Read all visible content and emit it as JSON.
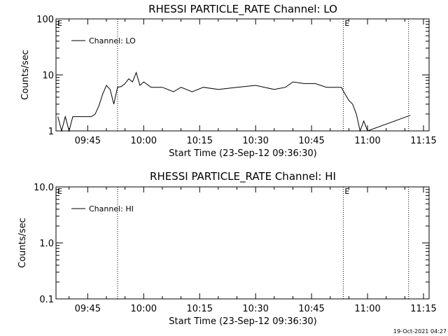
{
  "chart_data": [
    {
      "type": "line",
      "title": "RHESSI PARTICLE_RATE Channel: LO",
      "xlabel": "Start Time (23-Sep-12 09:36:30)",
      "ylabel": "Counts/sec",
      "yscale": "log",
      "ylim": [
        1,
        100
      ],
      "xlim": [
        "09:36:30",
        "11:16:30"
      ],
      "x_ticks": [
        "09:45",
        "10:00",
        "10:15",
        "10:30",
        "10:45",
        "11:00",
        "11:15"
      ],
      "y_ticks": [
        "1",
        "10",
        "100"
      ],
      "legend": {
        "entries": [
          "Channel: LO"
        ],
        "placement": "top-left"
      },
      "markers": [
        {
          "time": "09:53:00",
          "label": ""
        },
        {
          "time": "10:53:30",
          "label": "E"
        },
        {
          "time": "11:11:00",
          "label": ""
        }
      ],
      "edge_labels": {
        "left": "E"
      },
      "series": [
        {
          "name": "Channel: LO",
          "x": [
            "09:37:00",
            "09:38:00",
            "09:39:00",
            "09:40:00",
            "09:41:00",
            "09:42:00",
            "09:43:00",
            "09:44:00",
            "09:45:00",
            "09:46:00",
            "09:47:00",
            "09:48:00",
            "09:49:00",
            "09:50:00",
            "09:51:00",
            "09:52:00",
            "09:53:00",
            "09:54:00",
            "09:55:00",
            "09:56:00",
            "09:57:00",
            "09:58:00",
            "09:59:00",
            "10:00:00",
            "10:02:00",
            "10:05:00",
            "10:08:00",
            "10:10:00",
            "10:13:00",
            "10:16:00",
            "10:20:00",
            "10:25:00",
            "10:30:00",
            "10:35:00",
            "10:38:00",
            "10:40:00",
            "10:43:00",
            "10:46:00",
            "10:49:00",
            "10:51:00",
            "10:53:00",
            "10:54:00",
            "10:55:00",
            "10:56:00",
            "10:57:00",
            "10:58:00",
            "10:59:00",
            "11:00:00",
            "11:11:30"
          ],
          "values": [
            1.8,
            1,
            1.8,
            1,
            1.8,
            1.8,
            1.8,
            1.8,
            1.8,
            1.8,
            2,
            2.8,
            4.5,
            6.5,
            5.5,
            3,
            6,
            6.2,
            7,
            8.5,
            7.5,
            11,
            6.5,
            7.5,
            6,
            6,
            5,
            6,
            5,
            6,
            5.5,
            6,
            6.5,
            5.5,
            6,
            7.5,
            7,
            7,
            6,
            6,
            6,
            4.5,
            3.5,
            3,
            2,
            1,
            1.5,
            1,
            1.9
          ]
        }
      ]
    },
    {
      "type": "line",
      "title": "RHESSI PARTICLE_RATE Channel: HI",
      "xlabel": "Start Time (23-Sep-12 09:36:30)",
      "ylabel": "Counts/sec",
      "yscale": "log",
      "ylim": [
        0.1,
        10
      ],
      "xlim": [
        "09:36:30",
        "11:16:30"
      ],
      "x_ticks": [
        "09:45",
        "10:00",
        "10:15",
        "10:30",
        "10:45",
        "11:00",
        "11:15"
      ],
      "y_ticks": [
        "0.1",
        "1.0",
        "10.0"
      ],
      "legend": {
        "entries": [
          "Channel: HI"
        ],
        "placement": "top-left"
      },
      "markers": [
        {
          "time": "09:53:00",
          "label": ""
        },
        {
          "time": "10:53:30",
          "label": "E"
        },
        {
          "time": "11:11:00",
          "label": ""
        }
      ],
      "edge_labels": {
        "left": "E"
      },
      "series": [
        {
          "name": "Channel: HI",
          "x": [],
          "values": []
        }
      ]
    }
  ],
  "footer": {
    "timestamp": "19-Oct-2021 04:27"
  }
}
